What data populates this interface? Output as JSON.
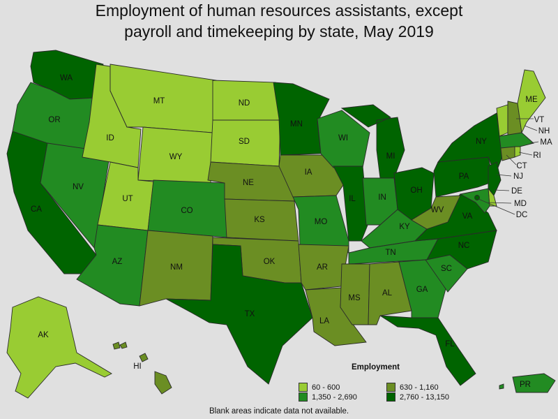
{
  "title_line1": "Employment of human resources assistants, except",
  "title_line2": "payroll and timekeeping by state, May 2019",
  "legend": {
    "title": "Employment",
    "items": [
      {
        "label": "60 - 600",
        "color": "#99cc33"
      },
      {
        "label": "630 - 1,160",
        "color": "#6b8e23"
      },
      {
        "label": "1,350 - 2,690",
        "color": "#228b22"
      },
      {
        "label": "2,760 - 13,150",
        "color": "#006400"
      }
    ]
  },
  "footnote": "Blank areas indicate data not available.",
  "states": {
    "WA": {
      "label": "WA",
      "bin": 3
    },
    "OR": {
      "label": "OR",
      "bin": 2
    },
    "CA": {
      "label": "CA",
      "bin": 3
    },
    "NV": {
      "label": "NV",
      "bin": 2
    },
    "ID": {
      "label": "ID",
      "bin": 0
    },
    "MT": {
      "label": "MT",
      "bin": 0
    },
    "WY": {
      "label": "WY",
      "bin": 0
    },
    "UT": {
      "label": "UT",
      "bin": 0
    },
    "AZ": {
      "label": "AZ",
      "bin": 2
    },
    "CO": {
      "label": "CO",
      "bin": 2
    },
    "NM": {
      "label": "NM",
      "bin": 1
    },
    "ND": {
      "label": "ND",
      "bin": 0
    },
    "SD": {
      "label": "SD",
      "bin": 0
    },
    "NE": {
      "label": "NE",
      "bin": 1
    },
    "KS": {
      "label": "KS",
      "bin": 1
    },
    "OK": {
      "label": "OK",
      "bin": 1
    },
    "TX": {
      "label": "TX",
      "bin": 3
    },
    "MN": {
      "label": "MN",
      "bin": 3
    },
    "IA": {
      "label": "IA",
      "bin": 1
    },
    "MO": {
      "label": "MO",
      "bin": 2
    },
    "AR": {
      "label": "AR",
      "bin": 1
    },
    "LA": {
      "label": "LA",
      "bin": 1
    },
    "WI": {
      "label": "WI",
      "bin": 2
    },
    "IL": {
      "label": "IL",
      "bin": 3
    },
    "MI": {
      "label": "MI",
      "bin": 3
    },
    "IN": {
      "label": "IN",
      "bin": 2
    },
    "OH": {
      "label": "OH",
      "bin": 3
    },
    "KY": {
      "label": "KY",
      "bin": 2
    },
    "TN": {
      "label": "TN",
      "bin": 2
    },
    "MS": {
      "label": "MS",
      "bin": 1
    },
    "AL": {
      "label": "AL",
      "bin": 1
    },
    "GA": {
      "label": "GA",
      "bin": 2
    },
    "FL": {
      "label": "FL",
      "bin": 3
    },
    "SC": {
      "label": "SC",
      "bin": 2
    },
    "NC": {
      "label": "NC",
      "bin": 3
    },
    "VA": {
      "label": "VA",
      "bin": 3
    },
    "WV": {
      "label": "WV",
      "bin": 1
    },
    "PA": {
      "label": "PA",
      "bin": 3
    },
    "NY": {
      "label": "NY",
      "bin": 3
    },
    "VT": {
      "label": "VT",
      "bin": 0
    },
    "NH": {
      "label": "NH",
      "bin": 1
    },
    "ME": {
      "label": "ME",
      "bin": 0
    },
    "MA": {
      "label": "MA",
      "bin": 2
    },
    "RI": {
      "label": "RI",
      "bin": 0
    },
    "CT": {
      "label": "CT",
      "bin": 1
    },
    "NJ": {
      "label": "NJ",
      "bin": 3
    },
    "DE": {
      "label": "DE",
      "bin": 0
    },
    "MD": {
      "label": "MD",
      "bin": 2
    },
    "DC": {
      "label": "DC",
      "bin": 3
    },
    "AK": {
      "label": "AK",
      "bin": 0
    },
    "HI": {
      "label": "HI",
      "bin": 1
    },
    "PR": {
      "label": "PR",
      "bin": 2
    }
  }
}
